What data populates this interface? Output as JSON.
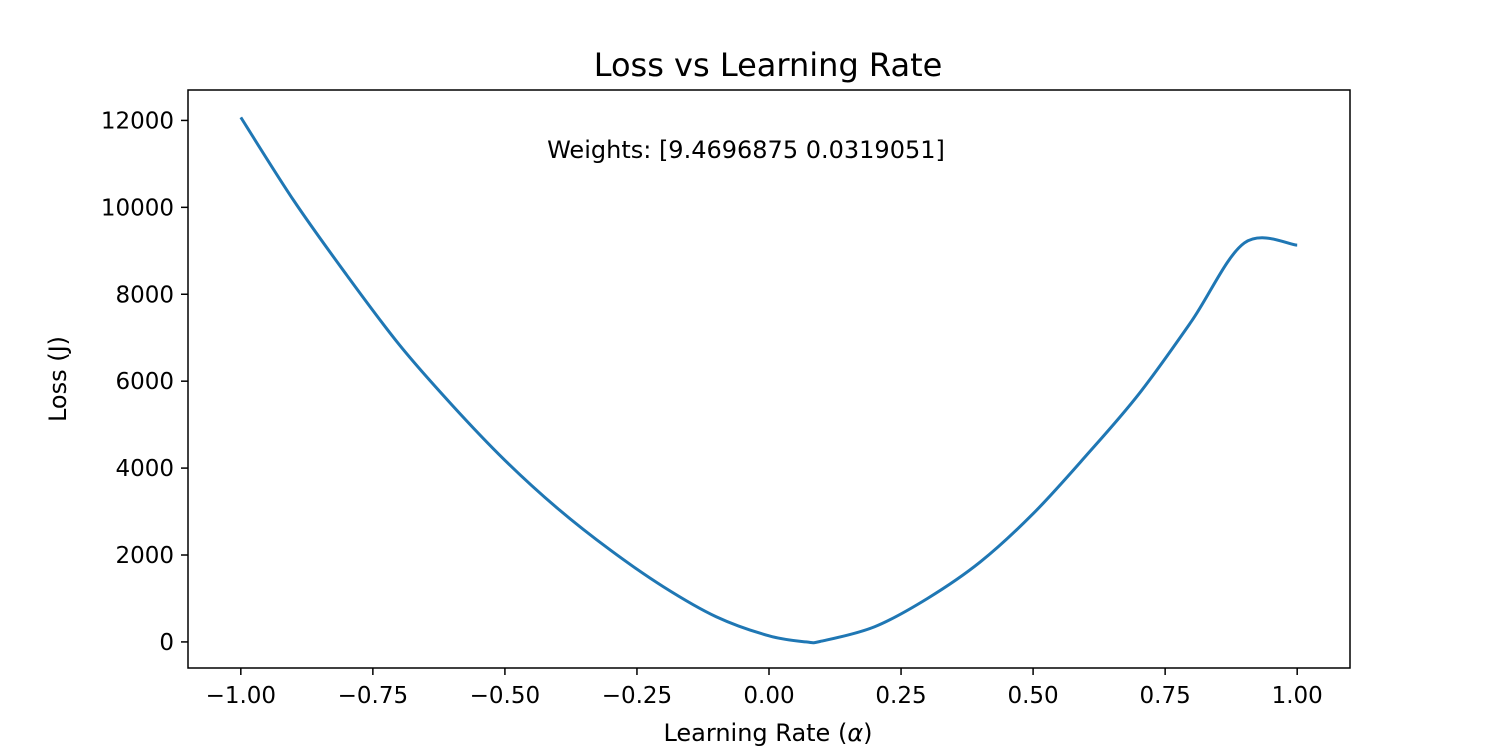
{
  "chart_data": {
    "type": "line",
    "title": "Loss vs Learning Rate",
    "xlabel_main": "Learning Rate (",
    "xlabel_symbol": "α",
    "xlabel_close": ")",
    "ylabel": "Loss (J)",
    "annotation": "Weights: [9.4696875 0.0319051]",
    "xlim": [
      -1.1,
      1.1
    ],
    "ylim": [
      -600,
      12700
    ],
    "grid": false,
    "legend": "none",
    "x_ticks": [
      -1.0,
      -0.75,
      -0.5,
      -0.25,
      0.0,
      0.25,
      0.5,
      0.75,
      1.0
    ],
    "x_tick_labels": [
      "−1.00",
      "−0.75",
      "−0.50",
      "−0.25",
      "0.00",
      "0.25",
      "0.50",
      "0.75",
      "1.00"
    ],
    "y_ticks": [
      0,
      2000,
      4000,
      6000,
      8000,
      10000,
      12000
    ],
    "y_tick_labels": [
      "0",
      "2000",
      "4000",
      "6000",
      "8000",
      "10000",
      "12000"
    ],
    "series": [
      {
        "color": "#1f77b4",
        "x": [
          -1.0,
          -0.9,
          -0.8,
          -0.7,
          -0.6,
          -0.5,
          -0.4,
          -0.3,
          -0.2,
          -0.1,
          0.0,
          0.07,
          0.1,
          0.2,
          0.3,
          0.4,
          0.5,
          0.6,
          0.7,
          0.8,
          0.9,
          1.0
        ],
        "y": [
          12070,
          10160,
          8450,
          6840,
          5450,
          4180,
          3070,
          2110,
          1270,
          580,
          140,
          0,
          20,
          350,
          1000,
          1840,
          2950,
          4280,
          5700,
          7380,
          9180,
          9130
        ]
      }
    ]
  }
}
